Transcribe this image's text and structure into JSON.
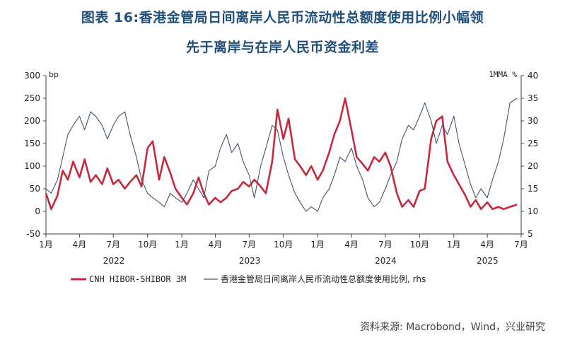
{
  "title_line1": "图表 16:香港金管局日间离岸人民币流动性总额度使用比例小幅领",
  "title_line2": "先于离岸与在岸人民币资金利差",
  "source": "资料来源: Macrobond，Wind，兴业研究",
  "colors": {
    "title": "#1f4e79",
    "series_red": "#c8283c",
    "series_blue": "#44546a",
    "axis": "#404040"
  },
  "chart_data": {
    "type": "line",
    "y_unit_left": "bp",
    "y_unit_right": "1MMA %",
    "ylim_left": [
      -50,
      300
    ],
    "yticks_left": [
      "300",
      "250",
      "200",
      "150",
      "100",
      "50",
      "0",
      "-50"
    ],
    "ylim_right": [
      5,
      40
    ],
    "yticks_right": [
      "40",
      "35",
      "30",
      "25",
      "20",
      "15",
      "10",
      "5"
    ],
    "x_start": "2022-01-01",
    "x_end": "2025-07-01",
    "x_month_labels": [
      "1月",
      "4月",
      "7月",
      "10月",
      "1月",
      "4月",
      "7月",
      "10月",
      "1月",
      "4月",
      "7月",
      "10月",
      "1月",
      "4月",
      "7月"
    ],
    "x_year_labels": [
      "2022",
      "2023",
      "2024",
      "2025"
    ],
    "legend": [
      {
        "key": "cnh",
        "label": "CNH HIBOR-SHIBOR 3M"
      },
      {
        "key": "hkma",
        "label": "香港金管局日间离岸人民币流动性总额度使用比例, rhs"
      }
    ],
    "series": [
      {
        "name": "CNH HIBOR-SHIBOR 3M",
        "axis": "left",
        "color": "#c8283c",
        "points": [
          [
            "2022-01-01",
            40
          ],
          [
            "2022-01-15",
            5
          ],
          [
            "2022-02-01",
            35
          ],
          [
            "2022-02-15",
            90
          ],
          [
            "2022-03-01",
            70
          ],
          [
            "2022-03-15",
            110
          ],
          [
            "2022-04-01",
            75
          ],
          [
            "2022-04-15",
            115
          ],
          [
            "2022-05-01",
            65
          ],
          [
            "2022-05-15",
            80
          ],
          [
            "2022-06-01",
            60
          ],
          [
            "2022-06-15",
            95
          ],
          [
            "2022-07-01",
            60
          ],
          [
            "2022-07-15",
            70
          ],
          [
            "2022-08-01",
            50
          ],
          [
            "2022-08-15",
            65
          ],
          [
            "2022-09-01",
            80
          ],
          [
            "2022-09-15",
            55
          ],
          [
            "2022-10-01",
            140
          ],
          [
            "2022-10-15",
            155
          ],
          [
            "2022-11-01",
            70
          ],
          [
            "2022-11-15",
            120
          ],
          [
            "2022-12-01",
            85
          ],
          [
            "2022-12-15",
            50
          ],
          [
            "2023-01-01",
            30
          ],
          [
            "2023-01-15",
            15
          ],
          [
            "2023-02-01",
            40
          ],
          [
            "2023-02-15",
            75
          ],
          [
            "2023-03-01",
            40
          ],
          [
            "2023-03-15",
            15
          ],
          [
            "2023-04-01",
            30
          ],
          [
            "2023-04-15",
            20
          ],
          [
            "2023-05-01",
            30
          ],
          [
            "2023-05-15",
            45
          ],
          [
            "2023-06-01",
            50
          ],
          [
            "2023-06-15",
            65
          ],
          [
            "2023-07-01",
            55
          ],
          [
            "2023-07-15",
            70
          ],
          [
            "2023-08-01",
            55
          ],
          [
            "2023-08-15",
            40
          ],
          [
            "2023-09-01",
            110
          ],
          [
            "2023-09-15",
            225
          ],
          [
            "2023-10-01",
            160
          ],
          [
            "2023-10-15",
            205
          ],
          [
            "2023-11-01",
            115
          ],
          [
            "2023-11-15",
            100
          ],
          [
            "2023-12-01",
            80
          ],
          [
            "2023-12-15",
            100
          ],
          [
            "2024-01-01",
            70
          ],
          [
            "2024-01-15",
            90
          ],
          [
            "2024-02-01",
            130
          ],
          [
            "2024-02-15",
            170
          ],
          [
            "2024-03-01",
            200
          ],
          [
            "2024-03-15",
            250
          ],
          [
            "2024-04-01",
            180
          ],
          [
            "2024-04-15",
            120
          ],
          [
            "2024-05-01",
            105
          ],
          [
            "2024-05-15",
            90
          ],
          [
            "2024-06-01",
            120
          ],
          [
            "2024-06-15",
            110
          ],
          [
            "2024-07-01",
            130
          ],
          [
            "2024-07-15",
            100
          ],
          [
            "2024-08-01",
            40
          ],
          [
            "2024-08-15",
            10
          ],
          [
            "2024-09-01",
            25
          ],
          [
            "2024-09-15",
            10
          ],
          [
            "2024-10-01",
            45
          ],
          [
            "2024-10-15",
            50
          ],
          [
            "2024-11-01",
            160
          ],
          [
            "2024-11-15",
            200
          ],
          [
            "2024-12-01",
            210
          ],
          [
            "2024-12-15",
            110
          ],
          [
            "2025-01-01",
            80
          ],
          [
            "2025-01-15",
            60
          ],
          [
            "2025-02-01",
            35
          ],
          [
            "2025-02-15",
            10
          ],
          [
            "2025-03-01",
            25
          ],
          [
            "2025-03-15",
            5
          ],
          [
            "2025-04-01",
            20
          ],
          [
            "2025-04-15",
            5
          ],
          [
            "2025-05-01",
            10
          ],
          [
            "2025-05-15",
            5
          ],
          [
            "2025-06-01",
            10
          ],
          [
            "2025-06-20",
            15
          ]
        ]
      },
      {
        "name": "香港金管局日间离岸人民币流动性总额度使用比例",
        "axis": "right",
        "color": "#44546a",
        "points": [
          [
            "2022-01-01",
            15
          ],
          [
            "2022-01-15",
            14
          ],
          [
            "2022-02-01",
            17
          ],
          [
            "2022-02-15",
            22
          ],
          [
            "2022-03-01",
            27
          ],
          [
            "2022-03-15",
            29
          ],
          [
            "2022-04-01",
            31
          ],
          [
            "2022-04-15",
            28
          ],
          [
            "2022-05-01",
            32
          ],
          [
            "2022-05-15",
            31
          ],
          [
            "2022-06-01",
            29
          ],
          [
            "2022-06-15",
            26
          ],
          [
            "2022-07-01",
            29
          ],
          [
            "2022-07-15",
            31
          ],
          [
            "2022-08-01",
            32
          ],
          [
            "2022-08-15",
            27
          ],
          [
            "2022-09-01",
            22
          ],
          [
            "2022-09-15",
            17
          ],
          [
            "2022-10-01",
            14
          ],
          [
            "2022-10-15",
            13
          ],
          [
            "2022-11-01",
            12
          ],
          [
            "2022-11-15",
            11
          ],
          [
            "2022-12-01",
            14
          ],
          [
            "2022-12-15",
            13
          ],
          [
            "2023-01-01",
            12
          ],
          [
            "2023-01-15",
            14
          ],
          [
            "2023-02-01",
            17
          ],
          [
            "2023-02-15",
            15
          ],
          [
            "2023-03-01",
            13
          ],
          [
            "2023-03-15",
            19
          ],
          [
            "2023-04-01",
            20
          ],
          [
            "2023-04-15",
            24
          ],
          [
            "2023-05-01",
            27
          ],
          [
            "2023-05-15",
            23
          ],
          [
            "2023-06-01",
            25
          ],
          [
            "2023-06-15",
            21
          ],
          [
            "2023-07-01",
            18
          ],
          [
            "2023-07-15",
            13
          ],
          [
            "2023-08-01",
            20
          ],
          [
            "2023-08-15",
            24
          ],
          [
            "2023-09-01",
            29
          ],
          [
            "2023-09-15",
            28
          ],
          [
            "2023-10-01",
            22
          ],
          [
            "2023-10-15",
            18
          ],
          [
            "2023-11-01",
            14
          ],
          [
            "2023-11-15",
            12
          ],
          [
            "2023-12-01",
            10
          ],
          [
            "2023-12-15",
            11
          ],
          [
            "2024-01-01",
            10
          ],
          [
            "2024-01-15",
            13
          ],
          [
            "2024-02-01",
            15
          ],
          [
            "2024-02-15",
            18
          ],
          [
            "2024-03-01",
            22
          ],
          [
            "2024-03-15",
            21
          ],
          [
            "2024-04-01",
            24
          ],
          [
            "2024-04-15",
            20
          ],
          [
            "2024-05-01",
            17
          ],
          [
            "2024-05-15",
            13
          ],
          [
            "2024-06-01",
            11
          ],
          [
            "2024-06-15",
            12
          ],
          [
            "2024-07-01",
            15
          ],
          [
            "2024-07-15",
            18
          ],
          [
            "2024-08-01",
            21
          ],
          [
            "2024-08-15",
            26
          ],
          [
            "2024-09-01",
            29
          ],
          [
            "2024-09-15",
            28
          ],
          [
            "2024-10-01",
            31
          ],
          [
            "2024-10-15",
            34
          ],
          [
            "2024-11-01",
            30
          ],
          [
            "2024-11-15",
            25
          ],
          [
            "2024-12-01",
            29
          ],
          [
            "2024-12-15",
            27
          ],
          [
            "2025-01-01",
            31
          ],
          [
            "2025-01-15",
            25
          ],
          [
            "2025-02-01",
            20
          ],
          [
            "2025-02-15",
            16
          ],
          [
            "2025-03-01",
            13
          ],
          [
            "2025-03-15",
            15
          ],
          [
            "2025-04-01",
            13
          ],
          [
            "2025-04-15",
            17
          ],
          [
            "2025-05-01",
            21
          ],
          [
            "2025-05-15",
            26
          ],
          [
            "2025-06-01",
            34
          ],
          [
            "2025-06-20",
            35
          ]
        ]
      }
    ]
  }
}
